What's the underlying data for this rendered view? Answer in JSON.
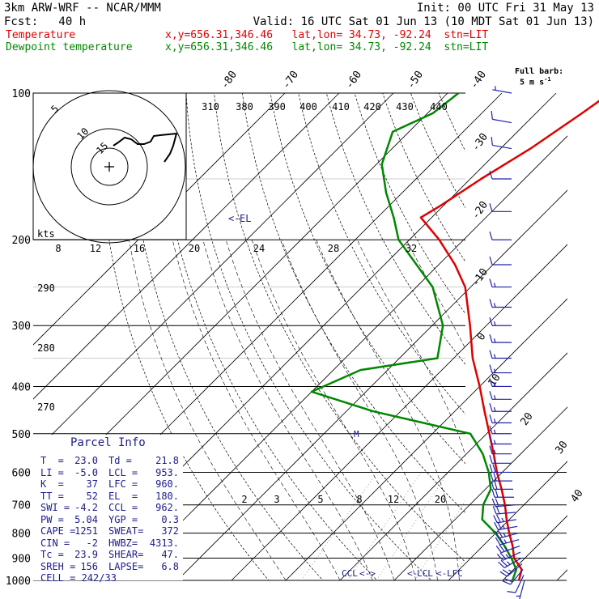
{
  "header": {
    "model": "3km ARW-WRF -- NCAR/MMM",
    "init": "Init: 00 UTC Fri 31 May 13",
    "fcst": "Fcst:   40 h",
    "valid": "Valid: 16 UTC Sat 01 Jun 13 (10 MDT Sat 01 Jun 13)",
    "legend": [
      {
        "label": "Temperature",
        "info": "x,y=656.31,346.46   lat,lon= 34.73, -92.24  stn=LIT",
        "color": "#e00000"
      },
      {
        "label": "Dewpoint temperature",
        "info": "x,y=656.31,346.46   lat,lon= 34.73, -92.24  stn=LIT",
        "color": "#008800"
      }
    ]
  },
  "wind_legend": {
    "title": "Full barb:",
    "value": "5 m s",
    "exp": "-1"
  },
  "chart_data": {
    "type": "line",
    "title": "",
    "pressure_levels": [
      "100",
      "200",
      "300",
      "400",
      "500",
      "600",
      "700",
      "800",
      "900",
      "1000"
    ],
    "skewed_isotherm_labels": [
      "-80",
      "-70",
      "-60",
      "-50",
      "-40",
      "-30",
      "-20",
      "-10",
      "0",
      "10",
      "20",
      "30",
      "40"
    ],
    "theta_labels_top": [
      "310",
      "380",
      "390",
      "400",
      "410",
      "420",
      "430",
      "440"
    ],
    "theta_labels_left": [
      "290",
      "280",
      "270"
    ],
    "mixing_ratio_labels": [
      "2",
      "3",
      "5",
      "8",
      "12",
      "20"
    ],
    "hodograph": {
      "units": "kts",
      "rings": [
        "5",
        "10",
        "15"
      ],
      "speed_axis": [
        "8",
        "12",
        "16",
        "20",
        "24",
        "28",
        "32"
      ],
      "trace_kts": [
        [
          0,
          0
        ],
        [
          1,
          5
        ],
        [
          3,
          9
        ],
        [
          6,
          11
        ],
        [
          9,
          12
        ],
        [
          12,
          11
        ],
        [
          15,
          10
        ],
        [
          17,
          9
        ],
        [
          20,
          9
        ],
        [
          23,
          13
        ],
        [
          22,
          17
        ],
        [
          20,
          21
        ],
        [
          18,
          24
        ]
      ]
    },
    "series": [
      {
        "name": "Temperature",
        "color": "#e00000",
        "points": [
          [
            1000,
            23.0
          ],
          [
            950,
            21.5
          ],
          [
            900,
            18.0
          ],
          [
            850,
            15.5
          ],
          [
            800,
            12.5
          ],
          [
            750,
            9.5
          ],
          [
            700,
            6.5
          ],
          [
            650,
            3.0
          ],
          [
            600,
            -1.0
          ],
          [
            550,
            -5.0
          ],
          [
            500,
            -9.5
          ],
          [
            450,
            -14.5
          ],
          [
            400,
            -20.0
          ],
          [
            350,
            -26.5
          ],
          [
            300,
            -33.0
          ],
          [
            250,
            -41.0
          ],
          [
            225,
            -47.0
          ],
          [
            200,
            -54.5
          ],
          [
            180,
            -62.0
          ],
          [
            170,
            -60.5
          ],
          [
            150,
            -58.0
          ],
          [
            130,
            -54.5
          ],
          [
            110,
            -51.5
          ],
          [
            100,
            -50.0
          ]
        ]
      },
      {
        "name": "Dewpoint temperature",
        "color": "#008800",
        "points": [
          [
            1000,
            21.8
          ],
          [
            950,
            20.5
          ],
          [
            900,
            17.5
          ],
          [
            850,
            14.0
          ],
          [
            800,
            10.0
          ],
          [
            750,
            5.0
          ],
          [
            700,
            2.5
          ],
          [
            650,
            1.0
          ],
          [
            600,
            -2.5
          ],
          [
            550,
            -7.0
          ],
          [
            500,
            -13.0
          ],
          [
            450,
            -35.0
          ],
          [
            410,
            -50.0
          ],
          [
            370,
            -45.0
          ],
          [
            350,
            -33.0
          ],
          [
            300,
            -38.0
          ],
          [
            250,
            -47.0
          ],
          [
            200,
            -62.0
          ],
          [
            180,
            -67.0
          ],
          [
            160,
            -73.0
          ],
          [
            140,
            -79.0
          ],
          [
            120,
            -83.0
          ],
          [
            110,
            -79.0
          ],
          [
            100,
            -78.0
          ]
        ]
      }
    ],
    "annotations": {
      "el": "EL",
      "lcl": "LCL",
      "lfc": "LFC",
      "ccl": "CCL"
    },
    "winds": [
      {
        "p": 1000,
        "dir": 195,
        "spd": 5
      },
      {
        "p": 975,
        "dir": 205,
        "spd": 10
      },
      {
        "p": 950,
        "dir": 220,
        "spd": 20
      },
      {
        "p": 925,
        "dir": 230,
        "spd": 25
      },
      {
        "p": 900,
        "dir": 240,
        "spd": 25
      },
      {
        "p": 875,
        "dir": 245,
        "spd": 25
      },
      {
        "p": 850,
        "dir": 250,
        "spd": 25
      },
      {
        "p": 825,
        "dir": 255,
        "spd": 25
      },
      {
        "p": 800,
        "dir": 255,
        "spd": 25
      },
      {
        "p": 775,
        "dir": 260,
        "spd": 25
      },
      {
        "p": 750,
        "dir": 260,
        "spd": 25
      },
      {
        "p": 725,
        "dir": 265,
        "spd": 20
      },
      {
        "p": 700,
        "dir": 265,
        "spd": 20
      },
      {
        "p": 675,
        "dir": 270,
        "spd": 20
      },
      {
        "p": 650,
        "dir": 270,
        "spd": 20
      },
      {
        "p": 625,
        "dir": 270,
        "spd": 20
      },
      {
        "p": 600,
        "dir": 270,
        "spd": 20
      },
      {
        "p": 575,
        "dir": 270,
        "spd": 15
      },
      {
        "p": 550,
        "dir": 270,
        "spd": 15
      },
      {
        "p": 525,
        "dir": 270,
        "spd": 15
      },
      {
        "p": 500,
        "dir": 270,
        "spd": 15
      },
      {
        "p": 475,
        "dir": 270,
        "spd": 15
      },
      {
        "p": 450,
        "dir": 270,
        "spd": 15
      },
      {
        "p": 425,
        "dir": 270,
        "spd": 15
      },
      {
        "p": 400,
        "dir": 270,
        "spd": 15
      },
      {
        "p": 375,
        "dir": 270,
        "spd": 15
      },
      {
        "p": 350,
        "dir": 270,
        "spd": 15
      },
      {
        "p": 325,
        "dir": 270,
        "spd": 15
      },
      {
        "p": 300,
        "dir": 270,
        "spd": 15
      },
      {
        "p": 275,
        "dir": 270,
        "spd": 15
      },
      {
        "p": 250,
        "dir": 270,
        "spd": 15
      },
      {
        "p": 225,
        "dir": 270,
        "spd": 10
      },
      {
        "p": 200,
        "dir": 270,
        "spd": 10
      },
      {
        "p": 175,
        "dir": 270,
        "spd": 10
      },
      {
        "p": 150,
        "dir": 270,
        "spd": 10
      },
      {
        "p": 130,
        "dir": 280,
        "spd": 10
      },
      {
        "p": 115,
        "dir": 280,
        "spd": 10
      },
      {
        "p": 100,
        "dir": 280,
        "spd": 5
      }
    ]
  },
  "parcel_info": {
    "title": "Parcel Info",
    "rows": [
      [
        "T  =",
        "23.0",
        "Td =",
        "21.8"
      ],
      [
        "LI =",
        "-5.0",
        "LCL =",
        "953."
      ],
      [
        "K  =",
        "37",
        "LFC =",
        "960."
      ],
      [
        "TT =",
        "52",
        "EL  =",
        "180."
      ],
      [
        "SWI =",
        "-4.2",
        "CCL =",
        "962."
      ],
      [
        "PW =",
        "5.04",
        "YGP =",
        "0.3"
      ],
      [
        "CAPE =",
        "1251",
        "SWEAT=",
        "372"
      ],
      [
        "CIN =",
        "-2",
        "HWBZ=",
        "4313."
      ],
      [
        "Tc =",
        "23.9",
        "SHEAR=",
        "47."
      ],
      [
        "SREH =",
        "156",
        "LAPSE=",
        "6.8"
      ],
      [
        "CELL = 242/33",
        "",
        "",
        ""
      ]
    ]
  }
}
